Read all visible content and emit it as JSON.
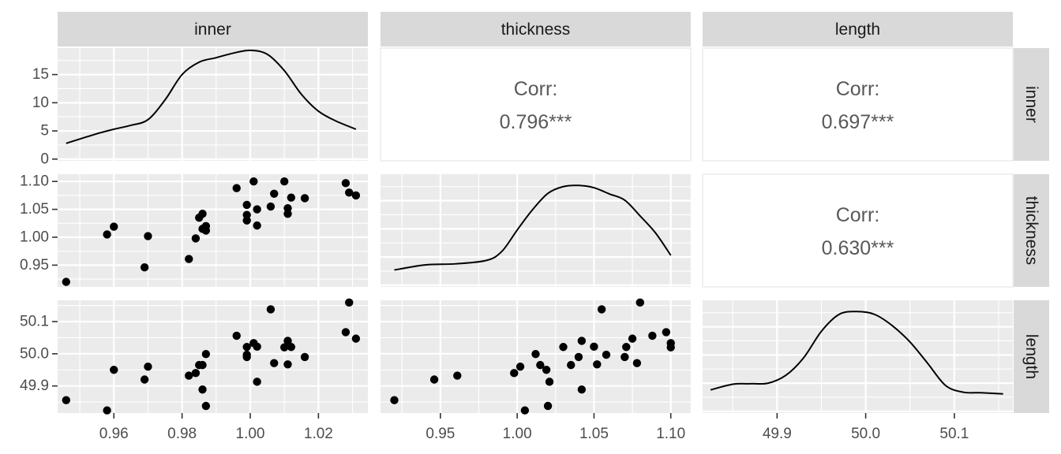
{
  "chart_data": {
    "type": "scatter",
    "title": "",
    "variables": [
      "inner",
      "thickness",
      "length"
    ],
    "column_strips": [
      "inner",
      "thickness",
      "length"
    ],
    "row_strips": [
      "inner",
      "thickness",
      "length"
    ],
    "correlation_label": "Corr:",
    "correlations": [
      {
        "row": "thickness",
        "col": "inner",
        "value": "0.796***"
      },
      {
        "row": "length",
        "col": "inner",
        "value": "0.697***"
      },
      {
        "row": "length",
        "col": "thickness",
        "value": "0.630***"
      }
    ],
    "axes": {
      "inner": {
        "range": [
          0.9435,
          1.0345
        ],
        "ticks": [
          0.96,
          0.98,
          1.0,
          1.02
        ],
        "tick_labels": [
          "0.96",
          "0.98",
          "1.00",
          "1.02"
        ]
      },
      "thickness": {
        "range": [
          0.911,
          1.113
        ],
        "ticks": [
          0.95,
          1.0,
          1.05,
          1.1
        ],
        "tick_labels": [
          "0.95",
          "1.00",
          "1.05",
          "1.10"
        ]
      },
      "length": {
        "range": [
          49.816,
          50.166
        ],
        "ticks": [
          49.9,
          50.0,
          50.1
        ],
        "tick_labels": [
          "49.9",
          "50.0",
          "50.1"
        ]
      },
      "density_y": {
        "range": [
          -0.3,
          19.7
        ],
        "ticks": [
          0,
          5,
          10,
          15
        ],
        "tick_labels": [
          "0",
          "5",
          "10",
          "15"
        ]
      }
    },
    "density": {
      "inner": {
        "x": [
          0.946,
          0.955,
          0.96,
          0.965,
          0.97,
          0.975,
          0.98,
          0.985,
          0.99,
          0.995,
          1.0,
          1.005,
          1.01,
          1.015,
          1.02,
          1.025,
          1.031
        ],
        "y": [
          2.8,
          4.5,
          5.3,
          6.0,
          7.0,
          10.5,
          15.0,
          17.2,
          18.0,
          18.8,
          19.3,
          18.6,
          15.7,
          11.5,
          8.5,
          6.8,
          5.3
        ]
      },
      "thickness": {
        "x": [
          0.92,
          0.94,
          0.96,
          0.98,
          0.99,
          1.0,
          1.01,
          1.02,
          1.03,
          1.04,
          1.05,
          1.06,
          1.07,
          1.08,
          1.09,
          1.1
        ],
        "y": [
          2.7,
          3.6,
          3.8,
          4.4,
          6.0,
          9.8,
          13.4,
          16.3,
          17.5,
          17.7,
          17.3,
          16.2,
          15.1,
          12.3,
          9.3,
          5.3
        ]
      },
      "length": {
        "x": [
          49.825,
          49.85,
          49.87,
          49.89,
          49.91,
          49.93,
          49.95,
          49.97,
          49.99,
          50.01,
          50.03,
          50.05,
          50.07,
          50.09,
          50.11,
          50.13,
          50.155
        ],
        "y": [
          3.8,
          4.8,
          4.9,
          5.0,
          6.4,
          9.5,
          14.2,
          17.2,
          17.7,
          17.2,
          15.2,
          12.3,
          8.5,
          4.6,
          3.4,
          3.3,
          3.1
        ]
      }
    },
    "points": {
      "inner": [
        0.946,
        0.958,
        0.96,
        0.969,
        0.97,
        0.982,
        0.984,
        0.985,
        0.986,
        0.986,
        0.987,
        0.987,
        0.996,
        0.999,
        0.999,
        0.999,
        1.001,
        1.002,
        1.002,
        1.006,
        1.007,
        1.01,
        1.011,
        1.011,
        1.012,
        1.016,
        1.028,
        1.029,
        1.031
      ],
      "thickness": [
        0.92,
        1.005,
        1.019,
        0.946,
        1.002,
        0.961,
        0.998,
        1.035,
        1.042,
        1.015,
        1.012,
        1.02,
        1.088,
        1.03,
        1.04,
        1.058,
        1.1,
        1.021,
        1.05,
        1.055,
        1.078,
        1.1,
        1.052,
        1.042,
        1.071,
        1.07,
        1.097,
        1.08,
        1.075
      ],
      "length": [
        49.856,
        49.824,
        49.95,
        49.92,
        49.96,
        49.932,
        49.94,
        49.965,
        49.889,
        49.965,
        49.999,
        49.838,
        50.056,
        50.021,
        49.99,
        49.997,
        50.033,
        49.913,
        50.022,
        50.138,
        49.971,
        50.02,
        49.967,
        50.04,
        50.021,
        49.99,
        50.067,
        50.159,
        50.047
      ]
    }
  }
}
